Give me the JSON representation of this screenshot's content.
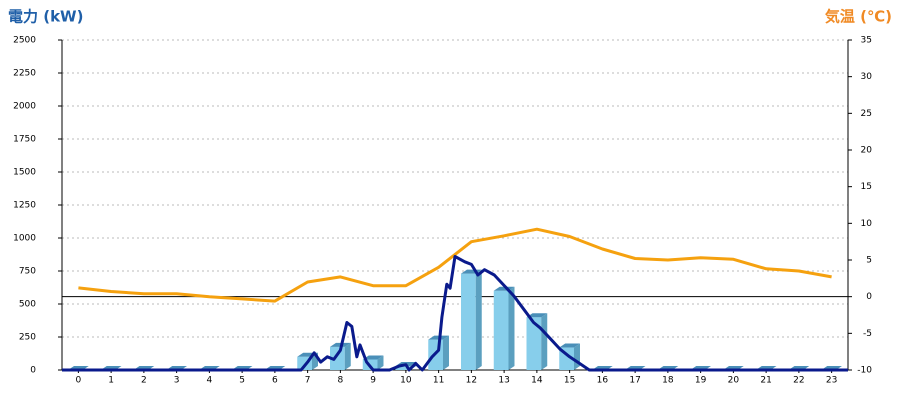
{
  "chart_data": {
    "type": "bar",
    "y_label": "電力 (kW)",
    "y2_label": "気温 (℃)",
    "y_label_color": "#1f5fa8",
    "y2_label_color": "#f08a24",
    "categories": [
      "0",
      "1",
      "2",
      "3",
      "4",
      "5",
      "6",
      "7",
      "8",
      "9",
      "10",
      "11",
      "12",
      "13",
      "14",
      "15",
      "16",
      "17",
      "18",
      "19",
      "20",
      "21",
      "22",
      "23"
    ],
    "xlim": [
      -0.5,
      23.5
    ],
    "ylim": [
      0,
      2500
    ],
    "yticks": [
      0,
      250,
      500,
      750,
      1000,
      1250,
      1500,
      1750,
      2000,
      2250,
      2500
    ],
    "y2lim": [
      -10,
      35
    ],
    "y2ticks": [
      -10,
      -5,
      0,
      5,
      10,
      15,
      20,
      25,
      30,
      35
    ],
    "grid": true,
    "y2_zero_line": true,
    "series": [
      {
        "type": "bar",
        "color": "#87ceeb",
        "values": [
          0,
          0,
          0,
          0,
          0,
          0,
          0,
          100,
          175,
          80,
          30,
          230,
          730,
          600,
          400,
          170,
          0,
          0,
          0,
          0,
          0,
          0,
          0,
          0
        ]
      },
      {
        "type": "line",
        "axis": "y2",
        "color": "#f5a10f",
        "values": [
          1.2,
          0.7,
          0.4,
          0.4,
          0,
          -0.3,
          -0.6,
          2,
          2.7,
          1.5,
          1.5,
          4,
          7.5,
          8.3,
          9.2,
          8.2,
          6.5,
          5.2,
          5,
          5.3,
          5.1,
          3.8,
          3.5,
          2.7
        ]
      },
      {
        "type": "line",
        "color": "#0a1a8c",
        "x": [
          -0.5,
          6.8,
          7.0,
          7.2,
          7.4,
          7.6,
          7.8,
          8.0,
          8.2,
          8.35,
          8.5,
          8.6,
          8.8,
          9.0,
          9.5,
          9.8,
          10.0,
          10.1,
          10.3,
          10.5,
          10.8,
          11.0,
          11.1,
          11.25,
          11.35,
          11.5,
          11.8,
          12.0,
          12.2,
          12.4,
          12.7,
          13.0,
          13.3,
          13.6,
          13.9,
          14.1,
          14.4,
          14.7,
          15.0,
          15.3,
          15.6,
          23.5
        ],
        "values": [
          0,
          0,
          60,
          130,
          60,
          100,
          80,
          150,
          360,
          330,
          100,
          190,
          60,
          0,
          0,
          30,
          40,
          0,
          50,
          0,
          100,
          150,
          400,
          650,
          620,
          860,
          820,
          800,
          720,
          760,
          720,
          640,
          560,
          460,
          360,
          320,
          240,
          160,
          100,
          50,
          0,
          0
        ]
      }
    ]
  }
}
